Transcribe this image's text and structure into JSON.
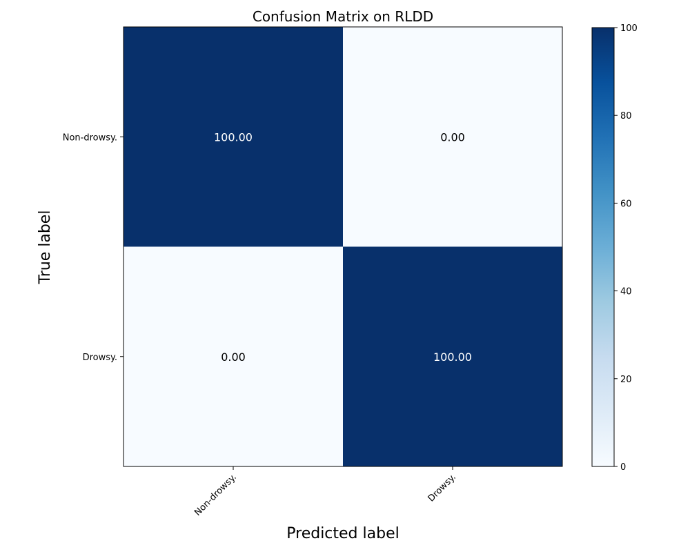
{
  "chart_data": {
    "type": "heatmap",
    "title": "Confusion Matrix on RLDD",
    "xlabel": "Predicted label",
    "ylabel": "True label",
    "x_categories": [
      "Non-drowsy.",
      "Drowsy."
    ],
    "y_categories": [
      "Non-drowsy.",
      "Drowsy."
    ],
    "values": [
      [
        100.0,
        0.0
      ],
      [
        0.0,
        100.0
      ]
    ],
    "value_labels": [
      [
        "100.00",
        "0.00"
      ],
      [
        "0.00",
        "100.00"
      ]
    ],
    "colorbar": {
      "range": [
        0,
        100
      ],
      "ticks": [
        0,
        20,
        40,
        60,
        80,
        100
      ],
      "tick_labels": [
        "0",
        "20",
        "40",
        "60",
        "80",
        "100"
      ],
      "colormap": "Blues",
      "low_color": "#f7fbff",
      "high_color": "#08306b"
    },
    "grid": false,
    "legend": "colorbar-right"
  }
}
